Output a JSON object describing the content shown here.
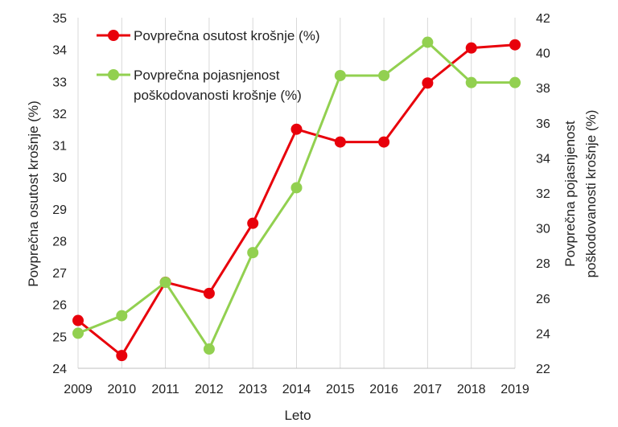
{
  "chart_data": {
    "type": "line",
    "x": [
      2009,
      2010,
      2011,
      2012,
      2013,
      2014,
      2015,
      2016,
      2017,
      2018,
      2019
    ],
    "xlabel": "Leto",
    "ylabel_left": "Povprečna osutost krošnje (%)",
    "ylabel_right_lines": [
      "Povprečna pojasnjenost",
      "poškodovanosti krošnje (%)"
    ],
    "ylim_left": [
      24,
      35
    ],
    "yticks_left": [
      24,
      25,
      26,
      27,
      28,
      29,
      30,
      31,
      32,
      33,
      34,
      35
    ],
    "ylim_right": [
      22,
      42
    ],
    "yticks_right": [
      22,
      24,
      26,
      28,
      30,
      32,
      34,
      36,
      38,
      40,
      42
    ],
    "grid": "vertical",
    "legend_position": "top-left",
    "series": [
      {
        "name": "Povprečna osutost krošnje (%)",
        "axis": "left",
        "color": "#e8000b",
        "values": [
          25.5,
          24.4,
          26.7,
          26.35,
          28.55,
          31.5,
          31.1,
          31.1,
          32.95,
          34.05,
          34.15
        ]
      },
      {
        "name_lines": [
          "Povprečna pojasnjenost",
          "poškodovanosti krošnje (%)"
        ],
        "axis": "right",
        "color": "#92d050",
        "values": [
          24.0,
          25.0,
          26.9,
          23.1,
          28.6,
          32.3,
          38.7,
          38.7,
          40.6,
          38.3,
          38.3
        ]
      }
    ]
  }
}
